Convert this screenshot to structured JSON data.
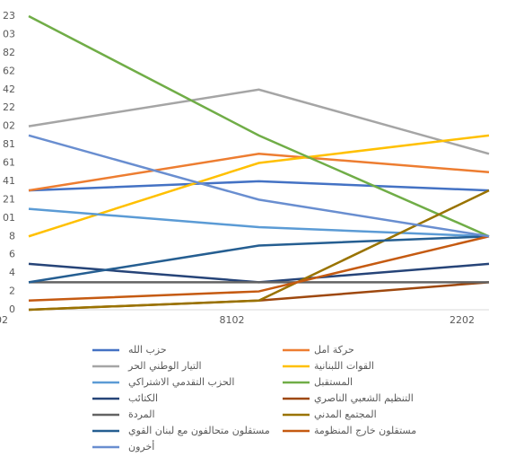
{
  "chart_data": {
    "type": "line",
    "categories": [
      "02",
      "8102",
      "2202"
    ],
    "ylim": [
      0,
      32
    ],
    "yticks": [
      0,
      2,
      4,
      6,
      8,
      {
        "value": 10,
        "label": "01"
      },
      {
        "value": 12,
        "label": "21"
      },
      {
        "value": 14,
        "label": "41"
      },
      {
        "value": 16,
        "label": "61"
      },
      {
        "value": 18,
        "label": "81"
      },
      {
        "value": 20,
        "label": "02"
      },
      {
        "value": 22,
        "label": "22"
      },
      {
        "value": 24,
        "label": "42"
      },
      {
        "value": 26,
        "label": "62"
      },
      {
        "value": 28,
        "label": "82"
      },
      {
        "value": 30,
        "label": "03"
      },
      {
        "value": 32,
        "label": "23"
      }
    ],
    "grid": false,
    "legend": "bottom",
    "series": [
      {
        "name": "حزب الله",
        "color": "#4472c4",
        "values": [
          13,
          14,
          13
        ]
      },
      {
        "name": "حركة امل",
        "color": "#ed7d31",
        "values": [
          13,
          17,
          15
        ]
      },
      {
        "name": "التيار الوطني الحر",
        "color": "#a5a5a5",
        "values": [
          20,
          24,
          17
        ]
      },
      {
        "name": "القوات اللبنانية",
        "color": "#ffc000",
        "values": [
          8,
          16,
          19
        ]
      },
      {
        "name": "الحزب التقدمي  الاشتراكي",
        "color": "#5b9bd5",
        "values": [
          11,
          9,
          8
        ]
      },
      {
        "name": "المستقبل",
        "color": "#70ad47",
        "values": [
          32,
          19,
          8
        ]
      },
      {
        "name": "الكتائب",
        "color": "#264478",
        "values": [
          5,
          3,
          5
        ]
      },
      {
        "name": "التنظيم الشعبي الناصري",
        "color": "#9e480e",
        "values": [
          0,
          1,
          3
        ]
      },
      {
        "name": "المردة",
        "color": "#636363",
        "values": [
          3,
          3,
          3
        ]
      },
      {
        "name": "المجتمع المدني",
        "color": "#997300",
        "values": [
          0,
          1,
          13
        ]
      },
      {
        "name": "مستقلون متحالفون مع لبنان القوي",
        "color": "#255e91",
        "values": [
          3,
          7,
          8
        ]
      },
      {
        "name": "مستقلون خارج المنظومة",
        "color": "#c55a11",
        "values": [
          1,
          2,
          8
        ]
      },
      {
        "name": "أخرون",
        "color": "#698ed0",
        "values": [
          19,
          12,
          8
        ]
      }
    ]
  }
}
